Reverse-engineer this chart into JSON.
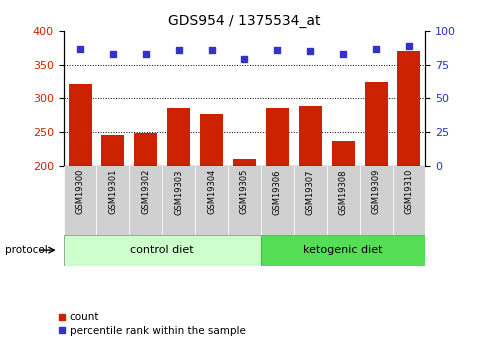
{
  "title": "GDS954 / 1375534_at",
  "categories": [
    "GSM19300",
    "GSM19301",
    "GSM19302",
    "GSM19303",
    "GSM19304",
    "GSM19305",
    "GSM19306",
    "GSM19307",
    "GSM19308",
    "GSM19309",
    "GSM19310"
  ],
  "bar_values": [
    322,
    246,
    249,
    286,
    276,
    210,
    286,
    289,
    237,
    324,
    370
  ],
  "dot_values": [
    87,
    83,
    83,
    86,
    86,
    79,
    86,
    85,
    83,
    87,
    89
  ],
  "bar_color": "#cc2200",
  "dot_color": "#3333cc",
  "ylim_left": [
    200,
    400
  ],
  "ylim_right": [
    0,
    100
  ],
  "yticks_left": [
    200,
    250,
    300,
    350,
    400
  ],
  "yticks_right": [
    0,
    25,
    50,
    75,
    100
  ],
  "grid_lines": [
    250,
    300,
    350
  ],
  "protocol_groups": [
    {
      "label": "control diet",
      "indices": [
        0,
        1,
        2,
        3,
        4,
        5
      ],
      "color": "#ccffcc"
    },
    {
      "label": "ketogenic diet",
      "indices": [
        6,
        7,
        8,
        9,
        10
      ],
      "color": "#55dd55"
    }
  ],
  "protocol_label": "protocol",
  "legend_count_label": "count",
  "legend_percentile_label": "percentile rank within the sample",
  "tick_bg_color": "#d0d0d0",
  "xlabel_color": "#cc2200",
  "ylabel_right_color": "#2233cc"
}
